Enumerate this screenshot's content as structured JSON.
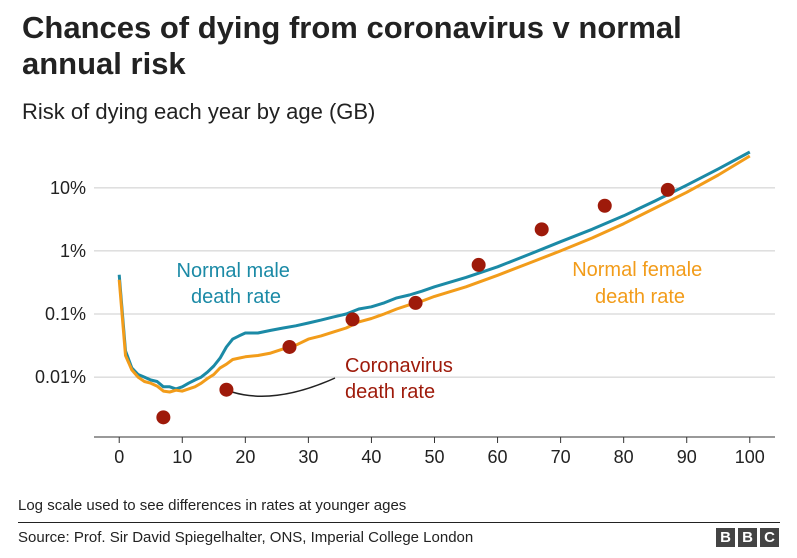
{
  "header": {
    "title": "Chances of dying from coronavirus v normal annual risk",
    "subtitle": "Risk of dying each year by age (GB)"
  },
  "chart_data": {
    "type": "line",
    "title": "Chances of dying from coronavirus v normal annual risk",
    "subtitle": "Risk of dying each year by age (GB)",
    "xlabel": "",
    "ylabel": "",
    "xlim": [
      -4,
      104
    ],
    "ylim_log10": [
      -4.95,
      -0.4
    ],
    "yscale": "log",
    "grid": true,
    "x_ticks": [
      0,
      10,
      20,
      30,
      40,
      50,
      60,
      70,
      80,
      90,
      100
    ],
    "x_tick_labels": [
      "0",
      "10",
      "20",
      "30",
      "40",
      "50",
      "60",
      "70",
      "80",
      "90",
      "100"
    ],
    "y_ticks": [
      0.0001,
      0.001,
      0.01,
      0.1
    ],
    "y_tick_labels": [
      "0.01%",
      "0.1%",
      "1%",
      "10%"
    ],
    "series": [
      {
        "name": "Normal male death rate",
        "label_lines": [
          "Normal male",
          "death rate"
        ],
        "color": "#1b8aa6",
        "kind": "line",
        "x": [
          0,
          1,
          2,
          3,
          4,
          5,
          6,
          7,
          8,
          9,
          10,
          11,
          12,
          13,
          14,
          15,
          16,
          17,
          18,
          19,
          20,
          22,
          24,
          26,
          28,
          30,
          32,
          34,
          36,
          38,
          40,
          42,
          44,
          46,
          48,
          50,
          55,
          60,
          65,
          70,
          75,
          80,
          85,
          90,
          95,
          100
        ],
        "y": [
          0.0042,
          0.00026,
          0.00014,
          0.00011,
          0.0001,
          9e-05,
          8.5e-05,
          7e-05,
          7e-05,
          6.5e-05,
          7e-05,
          8e-05,
          9e-05,
          0.0001,
          0.00012,
          0.00015,
          0.0002,
          0.0003,
          0.0004,
          0.00045,
          0.0005,
          0.0005,
          0.00055,
          0.0006,
          0.00065,
          0.00072,
          0.0008,
          0.0009,
          0.001,
          0.0012,
          0.0013,
          0.0015,
          0.0018,
          0.002,
          0.0023,
          0.0027,
          0.0038,
          0.0056,
          0.0088,
          0.014,
          0.022,
          0.036,
          0.062,
          0.11,
          0.2,
          0.37
        ]
      },
      {
        "name": "Normal female death rate",
        "label_lines": [
          "Normal female",
          "death rate"
        ],
        "color": "#f29c1a",
        "kind": "line",
        "x": [
          0,
          1,
          2,
          3,
          4,
          5,
          6,
          7,
          8,
          9,
          10,
          11,
          12,
          13,
          14,
          15,
          16,
          17,
          18,
          19,
          20,
          22,
          24,
          26,
          28,
          30,
          32,
          34,
          36,
          38,
          40,
          42,
          44,
          46,
          48,
          50,
          55,
          60,
          65,
          70,
          75,
          80,
          85,
          90,
          95,
          100
        ],
        "y": [
          0.0035,
          0.00022,
          0.00013,
          0.0001,
          8.5e-05,
          8e-05,
          7.2e-05,
          6e-05,
          5.8e-05,
          6.2e-05,
          6e-05,
          6.5e-05,
          7e-05,
          8e-05,
          9.5e-05,
          0.00011,
          0.00014,
          0.00016,
          0.00019,
          0.0002,
          0.00021,
          0.00022,
          0.00024,
          0.00028,
          0.00032,
          0.0004,
          0.00045,
          0.00052,
          0.0006,
          0.00075,
          0.00085,
          0.001,
          0.0012,
          0.0014,
          0.0016,
          0.0019,
          0.0027,
          0.0041,
          0.0064,
          0.01,
          0.016,
          0.027,
          0.048,
          0.085,
          0.16,
          0.32
        ]
      },
      {
        "name": "Coronavirus death rate",
        "label_lines": [
          "Coronavirus",
          "death rate"
        ],
        "color": "#9e1a0a",
        "kind": "points",
        "x": [
          7,
          17,
          27,
          37,
          47,
          57,
          67,
          77,
          87
        ],
        "y": [
          2.3e-05,
          6.3e-05,
          0.0003,
          0.00082,
          0.0015,
          0.006,
          0.022,
          0.052,
          0.093
        ]
      }
    ],
    "footnote": "Log scale used to see differences in rates at younger ages",
    "source": "Source: Prof. Sir David Spiegelhalter, ONS, Imperial College London",
    "logo_letters": [
      "B",
      "B",
      "C"
    ]
  }
}
